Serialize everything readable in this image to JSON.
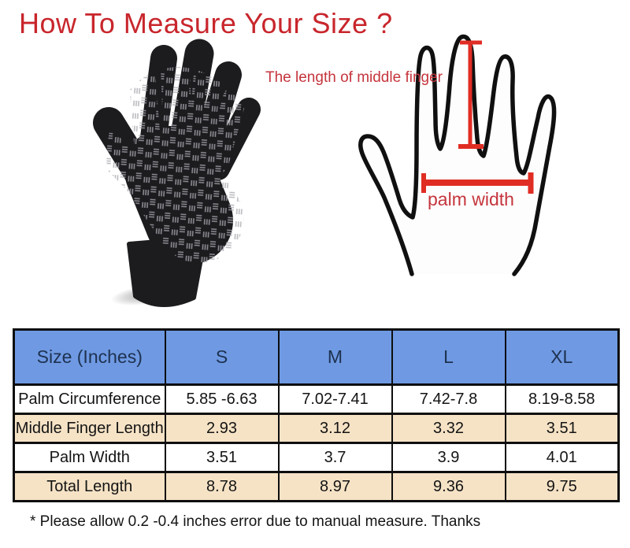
{
  "title": {
    "text": "How To Measure Your Size ?"
  },
  "diagram": {
    "middle_finger_label": "The length of middle finger",
    "palm_width_label": "palm width"
  },
  "size_table": {
    "columns": [
      "Size (Inches)",
      "S",
      "M",
      "L",
      "XL"
    ],
    "rows": [
      {
        "label": "Palm Circumference",
        "values": [
          "5.85 -6.63",
          "7.02-7.41",
          "7.42-7.8",
          "8.19-8.58"
        ]
      },
      {
        "label": "Middle Finger Length",
        "values": [
          "2.93",
          "3.12",
          "3.32",
          "3.51"
        ]
      },
      {
        "label": "Palm Width",
        "values": [
          "3.51",
          "3.7",
          "3.9",
          "4.01"
        ]
      },
      {
        "label": "Total Length",
        "values": [
          "8.78",
          "8.97",
          "9.36",
          "9.75"
        ]
      }
    ]
  },
  "footnote": "* Please allow 0.2 -0.4 inches error due to manual measure. Thanks",
  "colors": {
    "title_red": "#c8262c",
    "annotation_red": "#c5353d",
    "arrow_red": "#e02d24",
    "table_header_bg": "#6f9ae3",
    "table_header_text": "#1e3150",
    "table_alt_row_bg": "#f6e3c6",
    "table_border": "#0e0e0e",
    "glove_black": "#1c1c1f",
    "hand_outline": "#101010"
  }
}
